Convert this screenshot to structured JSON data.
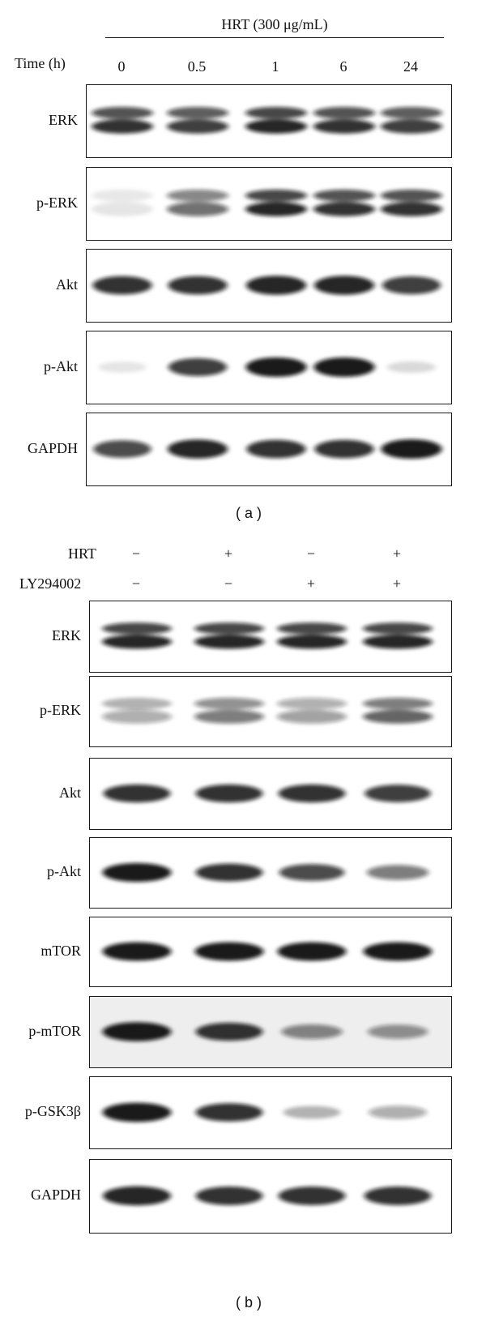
{
  "panel_a": {
    "treatment_label": "HRT (300 μg/mL)",
    "time_label": "Time (h)",
    "lanes": [
      "0",
      "0.5",
      "1",
      "6",
      "24"
    ],
    "rows": [
      {
        "name": "ERK",
        "lane_intensity": [
          0.85,
          0.8,
          0.9,
          0.85,
          0.8
        ],
        "bands": 2
      },
      {
        "name": "p-ERK",
        "lane_intensity": [
          0.1,
          0.6,
          0.9,
          0.85,
          0.85
        ],
        "bands": 2
      },
      {
        "name": "Akt",
        "lane_intensity": [
          0.85,
          0.85,
          0.9,
          0.9,
          0.8
        ],
        "bands": 1
      },
      {
        "name": "p-Akt",
        "lane_intensity": [
          0.1,
          0.8,
          0.95,
          0.95,
          0.15
        ],
        "bands": 1
      },
      {
        "name": "GAPDH",
        "lane_intensity": [
          0.75,
          0.9,
          0.85,
          0.85,
          0.95
        ],
        "bands": 1
      }
    ],
    "caption": "( a )"
  },
  "panel_b": {
    "conditions": [
      {
        "label": "HRT",
        "values": [
          "−",
          "+",
          "−",
          "+"
        ]
      },
      {
        "label": "LY294002",
        "values": [
          "−",
          "−",
          "+",
          "+"
        ]
      }
    ],
    "rows": [
      {
        "name": "ERK",
        "lane_intensity": [
          0.9,
          0.9,
          0.9,
          0.9
        ],
        "bands": 2
      },
      {
        "name": "p-ERK",
        "lane_intensity": [
          0.35,
          0.55,
          0.4,
          0.65
        ],
        "bands": 2
      },
      {
        "name": "Akt",
        "lane_intensity": [
          0.85,
          0.85,
          0.85,
          0.8
        ],
        "bands": 1
      },
      {
        "name": "p-Akt",
        "lane_intensity": [
          0.95,
          0.85,
          0.75,
          0.55
        ],
        "bands": 1
      },
      {
        "name": "mTOR",
        "lane_intensity": [
          0.95,
          0.95,
          0.95,
          0.95
        ],
        "bands": 1
      },
      {
        "name": "p-mTOR",
        "lane_intensity": [
          0.95,
          0.85,
          0.5,
          0.45
        ],
        "bands": 1
      },
      {
        "name": "p-GSK3β",
        "lane_intensity": [
          0.95,
          0.85,
          0.3,
          0.35
        ],
        "bands": 1
      },
      {
        "name": "GAPDH",
        "lane_intensity": [
          0.9,
          0.85,
          0.85,
          0.85
        ],
        "bands": 1
      }
    ],
    "caption": "( b )"
  }
}
